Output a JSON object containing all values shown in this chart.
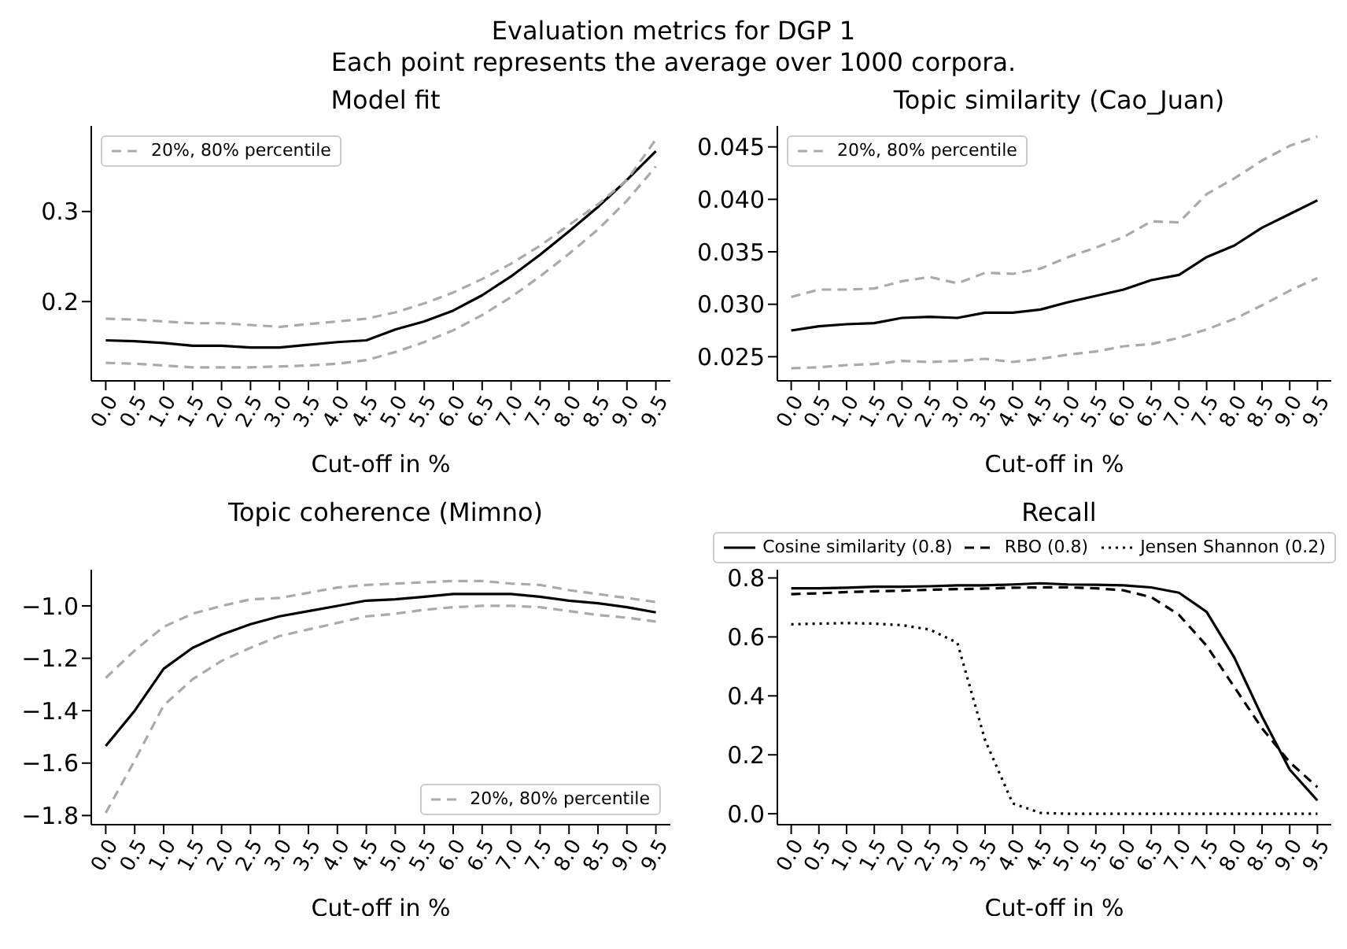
{
  "chart_data": [
    {
      "type": "line",
      "title": "Model fit",
      "xlabel": "Cut-off in %",
      "annotations": [
        "Evaluation metrics for DGP 1",
        "Each point represents the average over 1000 corpora."
      ],
      "categories": [
        "0.0",
        "0.5",
        "1.0",
        "1.5",
        "2.0",
        "2.5",
        "3.0",
        "3.5",
        "4.0",
        "4.5",
        "5.0",
        "5.5",
        "6.0",
        "6.5",
        "7.0",
        "7.5",
        "8.0",
        "8.5",
        "9.0",
        "9.5"
      ],
      "ylim": [
        0.112,
        0.395
      ],
      "yticks": [
        0.2,
        0.3
      ],
      "grid": false,
      "legend": "top left",
      "series": [
        {
          "color": "#000000",
          "line_style": "solid",
          "values": [
            0.157,
            0.156,
            0.154,
            0.151,
            0.151,
            0.149,
            0.149,
            0.152,
            0.155,
            0.157,
            0.169,
            0.178,
            0.19,
            0.207,
            0.228,
            0.252,
            0.278,
            0.305,
            0.335,
            0.367
          ]
        },
        {
          "name": "20%, 80% percentile",
          "color": "#aaaaaa",
          "line_style": "dashed",
          "values": [
            0.181,
            0.18,
            0.178,
            0.176,
            0.176,
            0.174,
            0.172,
            0.175,
            0.178,
            0.181,
            0.188,
            0.198,
            0.21,
            0.225,
            0.242,
            0.262,
            0.285,
            0.308,
            0.335,
            0.38
          ]
        },
        {
          "color": "#aaaaaa",
          "line_style": "dashed",
          "values": [
            0.132,
            0.131,
            0.129,
            0.127,
            0.127,
            0.127,
            0.128,
            0.129,
            0.131,
            0.135,
            0.144,
            0.155,
            0.168,
            0.185,
            0.205,
            0.228,
            0.253,
            0.28,
            0.312,
            0.35
          ]
        }
      ]
    },
    {
      "type": "line",
      "title": "Topic similarity (Cao_Juan)",
      "xlabel": "Cut-off in %",
      "categories": [
        "0.0",
        "0.5",
        "1.0",
        "1.5",
        "2.0",
        "2.5",
        "3.0",
        "3.5",
        "4.0",
        "4.5",
        "5.0",
        "5.5",
        "6.0",
        "6.5",
        "7.0",
        "7.5",
        "8.0",
        "8.5",
        "9.0",
        "9.5"
      ],
      "ylim": [
        0.0227,
        0.047
      ],
      "yticks": [
        {
          "value": 0.025,
          "label": "0.025"
        },
        {
          "value": 0.03,
          "label": "0.030"
        },
        {
          "value": 0.035,
          "label": "0.035"
        },
        {
          "value": 0.04,
          "label": "0.040"
        },
        {
          "value": 0.045,
          "label": "0.045"
        }
      ],
      "grid": false,
      "legend": "top left",
      "series": [
        {
          "color": "#000000",
          "line_style": "solid",
          "values": [
            0.0275,
            0.0279,
            0.0281,
            0.0282,
            0.0287,
            0.0288,
            0.0287,
            0.0292,
            0.0292,
            0.0295,
            0.0302,
            0.0308,
            0.0314,
            0.0323,
            0.0328,
            0.0345,
            0.0356,
            0.0373,
            0.0386,
            0.0399
          ]
        },
        {
          "name": "20%, 80% percentile",
          "color": "#aaaaaa",
          "line_style": "dashed",
          "values": [
            0.0307,
            0.0314,
            0.0314,
            0.0315,
            0.0322,
            0.0326,
            0.032,
            0.033,
            0.0329,
            0.0334,
            0.0345,
            0.0354,
            0.0364,
            0.0379,
            0.0378,
            0.0405,
            0.042,
            0.0437,
            0.0451,
            0.046
          ]
        },
        {
          "color": "#aaaaaa",
          "line_style": "dashed",
          "values": [
            0.0239,
            0.024,
            0.0242,
            0.0243,
            0.0246,
            0.0245,
            0.0246,
            0.0248,
            0.0245,
            0.0248,
            0.0252,
            0.0255,
            0.026,
            0.0262,
            0.0268,
            0.0276,
            0.0286,
            0.0299,
            0.0313,
            0.0325
          ]
        }
      ]
    },
    {
      "type": "line",
      "title": "Topic coherence (Mimno)",
      "xlabel": "Cut-off in %",
      "categories": [
        "0.0",
        "0.5",
        "1.0",
        "1.5",
        "2.0",
        "2.5",
        "3.0",
        "3.5",
        "4.0",
        "4.5",
        "5.0",
        "5.5",
        "6.0",
        "6.5",
        "7.0",
        "7.5",
        "8.0",
        "8.5",
        "9.0",
        "9.5"
      ],
      "ylim": [
        -1.835,
        -0.862
      ],
      "yticks": [
        {
          "value": -1.8,
          "label": "−1.8"
        },
        {
          "value": -1.6,
          "label": "−1.6"
        },
        {
          "value": -1.4,
          "label": "−1.4"
        },
        {
          "value": -1.2,
          "label": "−1.2"
        },
        {
          "value": -1.0,
          "label": "−1.0"
        }
      ],
      "grid": false,
      "legend": "bottom right",
      "series": [
        {
          "color": "#000000",
          "line_style": "solid",
          "values": [
            -1.535,
            -1.4,
            -1.24,
            -1.16,
            -1.11,
            -1.07,
            -1.04,
            -1.02,
            -1.0,
            -0.98,
            -0.975,
            -0.965,
            -0.955,
            -0.955,
            -0.955,
            -0.965,
            -0.98,
            -0.99,
            -1.005,
            -1.025
          ]
        },
        {
          "name": "20%, 80% percentile",
          "color": "#aaaaaa",
          "line_style": "dashed",
          "values": [
            -1.275,
            -1.17,
            -1.08,
            -1.03,
            -1.0,
            -0.975,
            -0.97,
            -0.95,
            -0.93,
            -0.92,
            -0.915,
            -0.91,
            -0.905,
            -0.905,
            -0.915,
            -0.92,
            -0.94,
            -0.955,
            -0.97,
            -0.985
          ]
        },
        {
          "color": "#aaaaaa",
          "line_style": "dashed",
          "values": [
            -1.79,
            -1.59,
            -1.38,
            -1.28,
            -1.21,
            -1.16,
            -1.115,
            -1.09,
            -1.065,
            -1.04,
            -1.03,
            -1.015,
            -1.005,
            -1.0,
            -1.0,
            -1.005,
            -1.02,
            -1.035,
            -1.045,
            -1.06
          ]
        }
      ]
    },
    {
      "type": "line",
      "title": "Recall",
      "xlabel": "Cut-off in %",
      "categories": [
        "0.0",
        "0.5",
        "1.0",
        "1.5",
        "2.0",
        "2.5",
        "3.0",
        "3.5",
        "4.0",
        "4.5",
        "5.0",
        "5.5",
        "6.0",
        "6.5",
        "7.0",
        "7.5",
        "8.0",
        "8.5",
        "9.0",
        "9.5"
      ],
      "ylim": [
        -0.037,
        0.828
      ],
      "yticks": [
        {
          "value": 0,
          "label": "0.0"
        },
        {
          "value": 0.2,
          "label": "0.2"
        },
        {
          "value": 0.4,
          "label": "0.4"
        },
        {
          "value": 0.6,
          "label": "0.6"
        },
        {
          "value": 0.8,
          "label": "0.8"
        }
      ],
      "grid": false,
      "legend": "top",
      "series": [
        {
          "name": "Cosine similarity (0.8)",
          "color": "#000000",
          "line_style": "solid",
          "values": [
            0.765,
            0.765,
            0.767,
            0.77,
            0.77,
            0.772,
            0.775,
            0.775,
            0.778,
            0.782,
            0.778,
            0.777,
            0.775,
            0.768,
            0.75,
            0.685,
            0.53,
            0.33,
            0.15,
            0.045
          ]
        },
        {
          "name": "RBO (0.8)",
          "color": "#000000",
          "line_style": "dashed",
          "values": [
            0.745,
            0.748,
            0.752,
            0.755,
            0.757,
            0.76,
            0.762,
            0.764,
            0.767,
            0.768,
            0.768,
            0.765,
            0.758,
            0.735,
            0.675,
            0.57,
            0.43,
            0.29,
            0.175,
            0.09
          ]
        },
        {
          "name": "Jensen Shannon (0.2)",
          "color": "#000000",
          "line_style": "dotted",
          "values": [
            0.643,
            0.645,
            0.647,
            0.645,
            0.64,
            0.625,
            0.58,
            0.25,
            0.035,
            0.003,
            0,
            0,
            0,
            0,
            0,
            0,
            0,
            0,
            0,
            0
          ]
        }
      ]
    }
  ]
}
